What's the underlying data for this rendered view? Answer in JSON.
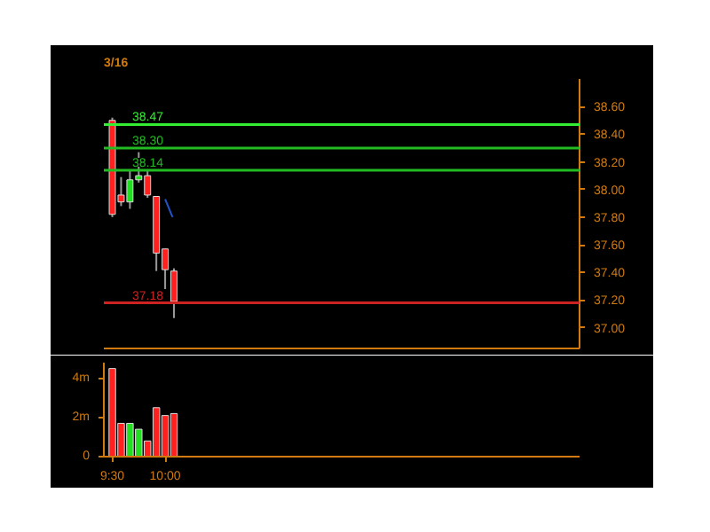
{
  "chart_data": [
    {
      "type": "candlestick",
      "title": "3/16",
      "x": [
        9.5,
        9.5833,
        9.6667,
        9.75,
        9.8333,
        9.9167,
        10.0,
        10.0833
      ],
      "ohlc": [
        [
          38.5,
          38.52,
          37.8,
          37.82
        ],
        [
          37.96,
          38.09,
          37.88,
          37.91
        ],
        [
          37.91,
          38.14,
          37.86,
          38.07
        ],
        [
          38.07,
          38.27,
          38.05,
          38.1
        ],
        [
          38.1,
          38.14,
          37.94,
          37.96
        ],
        [
          37.95,
          37.95,
          37.41,
          37.54
        ],
        [
          37.57,
          37.57,
          37.28,
          37.42
        ],
        [
          37.41,
          37.43,
          37.07,
          37.19
        ]
      ],
      "colors": [
        "#ff2020",
        "#ff2020",
        "#22dd22",
        "#22dd22",
        "#ff2020",
        "#ff2020",
        "#ff2020",
        "#ff2020"
      ],
      "series": [
        {
          "type": "line",
          "color": "#2255cc",
          "x": [
            10.0,
            10.07
          ],
          "values": [
            37.93,
            37.8
          ]
        }
      ],
      "xlim": [
        9.42,
        13.92
      ],
      "ylim": [
        36.85,
        38.8
      ],
      "yticks": [
        {
          "value": 37.0,
          "label": "37.00"
        },
        {
          "value": 37.2,
          "label": "37.20"
        },
        {
          "value": 37.4,
          "label": "37.40"
        },
        {
          "value": 37.6,
          "label": "37.60"
        },
        {
          "value": 37.8,
          "label": "37.80"
        },
        {
          "value": 38.0,
          "label": "38.00"
        },
        {
          "value": 38.2,
          "label": "38.20"
        },
        {
          "value": 38.4,
          "label": "38.40"
        },
        {
          "value": 38.6,
          "label": "38.60"
        }
      ],
      "tick_labels": "y",
      "grid": false,
      "ref_lines": [
        {
          "axis": "y",
          "value": 38.47,
          "label": "38.47",
          "color": "#33ee33"
        },
        {
          "axis": "y",
          "value": 38.3,
          "label": "38.30",
          "color": "#22bb22"
        },
        {
          "axis": "y",
          "value": 38.14,
          "label": "38.14",
          "color": "#22bb22"
        },
        {
          "axis": "y",
          "value": 37.18,
          "label": "37.18",
          "color": "#cc2222"
        }
      ]
    },
    {
      "type": "bar",
      "x": [
        9.5,
        9.5833,
        9.6667,
        9.75,
        9.8333,
        9.9167,
        10.0,
        10.0833
      ],
      "values": [
        4.5,
        1.7,
        1.7,
        1.4,
        0.8,
        2.5,
        2.1,
        2.2
      ],
      "colors": [
        "#ff2020",
        "#ff2020",
        "#22dd22",
        "#22dd22",
        "#ff2020",
        "#ff2020",
        "#ff2020",
        "#ff2020"
      ],
      "xlim": [
        9.42,
        13.92
      ],
      "ylim": [
        0,
        4.8
      ],
      "xticks": [
        {
          "value": 9.5,
          "label": "9:30"
        },
        {
          "value": 10.0,
          "label": "10:00"
        }
      ],
      "yticks": [
        0,
        {
          "value": 2,
          "label": "2m"
        },
        {
          "value": 4,
          "label": "4m"
        }
      ],
      "grid": false
    }
  ]
}
